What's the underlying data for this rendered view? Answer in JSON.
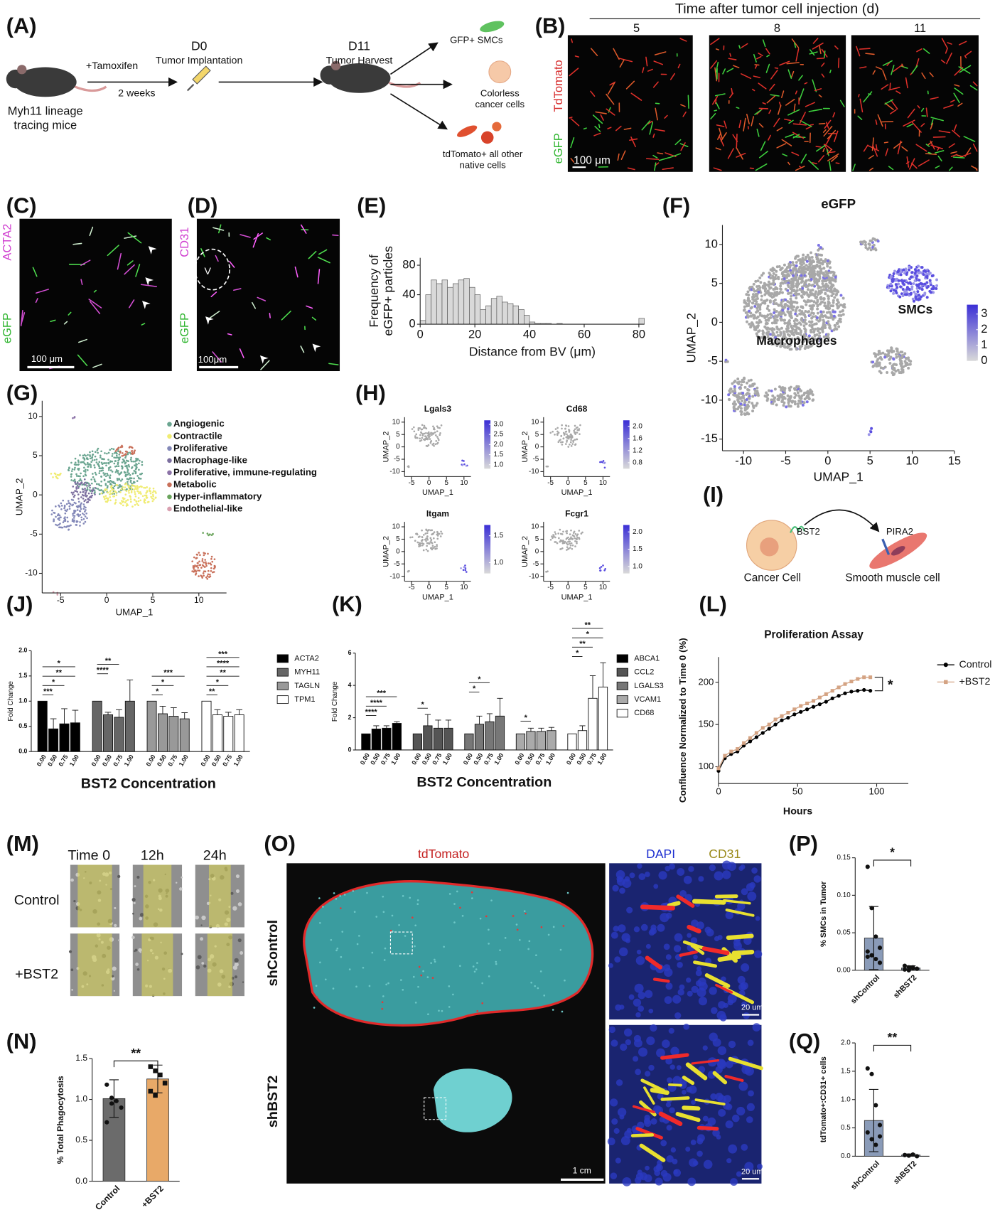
{
  "panel_labels": [
    "(A)",
    "(B)",
    "(C)",
    "(D)",
    "(E)",
    "(F)",
    "(G)",
    "(H)",
    "(I)",
    "(J)",
    "(K)",
    "(L)",
    "(M)",
    "(N)",
    "(O)",
    "(P)",
    "(Q)"
  ],
  "A": {
    "treatment": "+Tamoxifen",
    "interval": "2 weeks",
    "mouse": [
      "Myh11 lineage",
      "tracing mice"
    ],
    "d0": "D0",
    "d0_event": "Tumor Implantation",
    "d11": "D11",
    "d11_event": "Tumor Harvest",
    "outputs": [
      [
        "GFP+ SMCs"
      ],
      [
        "Colorless",
        "cancer cells"
      ],
      [
        "tdTomato+ all other",
        "native cells"
      ]
    ]
  },
  "B": {
    "title": "Time after tumor cell injection (d)",
    "days": [
      "5",
      "8",
      "11"
    ],
    "channels": [
      "TdTomato",
      "eGFP"
    ],
    "scale": "100 μm"
  },
  "C": {
    "channels": [
      "ACTA2",
      "eGFP"
    ],
    "scale": "100 μm"
  },
  "D": {
    "channels": [
      "CD31",
      "eGFP"
    ],
    "scale": "100μm",
    "vessel": "V"
  },
  "I": {
    "ligand": "BST2",
    "receptor": "PIRA2",
    "source": "Cancer Cell",
    "target": "Smooth muscle cell"
  },
  "M": {
    "times": [
      "Time 0",
      "12h",
      "24h"
    ],
    "conditions": [
      "Control",
      "+BST2"
    ]
  },
  "O": {
    "channel": "tdTomato",
    "inset_channels": [
      "DAPI",
      "CD31"
    ],
    "conditions": [
      "shControl",
      "shBST2"
    ],
    "scale": "1 cm",
    "inset_scales": [
      "20 um",
      "20 um"
    ]
  },
  "chart_data": [
    {
      "type": "histogram",
      "xlabel": "Distance from BV (μm)",
      "ylabel": [
        "Frequency of",
        "eGFP+ particles"
      ],
      "bins": [
        0,
        2,
        4,
        6,
        8,
        10,
        12,
        14,
        16,
        18,
        20,
        22,
        24,
        26,
        28,
        30,
        32,
        34,
        36,
        38,
        40,
        42,
        44,
        46,
        48,
        50,
        52,
        54,
        56,
        58,
        60,
        62,
        64,
        66,
        68,
        70,
        72,
        74,
        76,
        78,
        80,
        82
      ],
      "counts": [
        5,
        40,
        60,
        55,
        60,
        50,
        55,
        60,
        62,
        50,
        40,
        20,
        25,
        35,
        38,
        30,
        28,
        25,
        20,
        12,
        3,
        1,
        1,
        1,
        0,
        1,
        0,
        0,
        0,
        0,
        0,
        0,
        0,
        0,
        0,
        0,
        0,
        0,
        0,
        0,
        8
      ],
      "color": "#d9d9d9",
      "xlim": [
        0,
        82
      ],
      "ylim": [
        0,
        90
      ],
      "xticks": [
        0,
        20,
        40,
        60,
        80
      ],
      "yticks": [
        0,
        40,
        80
      ]
    },
    {
      "type": "umap",
      "title": "eGFP",
      "xlabel": "UMAP_1",
      "ylabel": "UMAP_2",
      "xlim": [
        -12.5,
        15
      ],
      "ylim": [
        -16.5,
        12.5
      ],
      "xticks": [
        -10,
        -5,
        0,
        5,
        10,
        15
      ],
      "yticks": [
        -15,
        -10,
        -5,
        0,
        5,
        10
      ],
      "colorbar": {
        "lim": [
          0,
          3.6
        ],
        "ticks": [
          0,
          1,
          2,
          3
        ],
        "colors": [
          "#d9d9d9",
          "#3b2fd6"
        ]
      },
      "annotations": [
        "SMCs",
        "Macrophages"
      ]
    },
    {
      "type": "umap",
      "xlabel": "UMAP_1",
      "ylabel": "UMAP_2",
      "xlim": [
        -7,
        13
      ],
      "ylim": [
        -12.5,
        12
      ],
      "xticks": [
        -5,
        0,
        5,
        10
      ],
      "yticks": [
        -10,
        -5,
        0,
        5,
        10
      ],
      "clusters": [
        {
          "name": "Angiogenic",
          "color": "#6aa590"
        },
        {
          "name": "Contractile",
          "color": "#f0ec72"
        },
        {
          "name": "Proliferative",
          "color": "#8388b8"
        },
        {
          "name": "Macrophage-like",
          "color": "#7c6f9f"
        },
        {
          "name": "Proliferative, immune-regulating",
          "color": "#8c73a8"
        },
        {
          "name": "Metabolic",
          "color": "#c9705a"
        },
        {
          "name": "Hyper-inflammatory",
          "color": "#6aa45c"
        },
        {
          "name": "Endothelial-like",
          "color": "#d9a0b0"
        }
      ]
    },
    {
      "type": "umap",
      "title": "Lgals3",
      "xlabel": "UMAP_1",
      "ylabel": "UMAP_2",
      "xlim": [
        -7,
        12
      ],
      "ylim": [
        -12,
        12
      ],
      "xticks": [
        -5,
        0,
        5,
        10
      ],
      "yticks": [
        -10,
        -5,
        0,
        5,
        10
      ],
      "colorbar": {
        "lim": [
          0.8,
          3.2
        ],
        "ticks": [
          {
            "value": 1,
            "label": "1.0"
          },
          1.5,
          {
            "value": 2,
            "label": "2.0"
          },
          2.5,
          {
            "value": 3,
            "label": "3.0"
          }
        ],
        "colors": [
          "#d9d9d9",
          "#3b2fd6"
        ]
      }
    },
    {
      "type": "umap",
      "title": "Cd68",
      "xlabel": "UMAP_1",
      "ylabel": "UMAP_2",
      "xlim": [
        -7,
        12
      ],
      "ylim": [
        -12,
        12
      ],
      "xticks": [
        -5,
        0,
        5,
        10
      ],
      "yticks": [
        -10,
        -5,
        0,
        5,
        10
      ],
      "colorbar": {
        "lim": [
          0.6,
          2.2
        ],
        "ticks": [
          0.8,
          1.2,
          1.6,
          {
            "value": 2,
            "label": "2.0"
          }
        ],
        "colors": [
          "#d9d9d9",
          "#3b2fd6"
        ]
      }
    },
    {
      "type": "umap",
      "title": "Itgam",
      "xlabel": "UMAP_1",
      "ylabel": "UMAP_2",
      "xlim": [
        -7,
        12
      ],
      "ylim": [
        -12,
        12
      ],
      "xticks": [
        -5,
        0,
        5,
        10
      ],
      "yticks": [
        -10,
        -5,
        0,
        5,
        10
      ],
      "colorbar": {
        "lim": [
          0.8,
          1.7
        ],
        "ticks": [
          {
            "value": 1,
            "label": "1.0"
          },
          1.5
        ],
        "colors": [
          "#d9d9d9",
          "#3b2fd6"
        ]
      }
    },
    {
      "type": "umap",
      "title": "Fcgr1",
      "xlabel": "UMAP_1",
      "ylabel": "UMAP_2",
      "xlim": [
        -7,
        12
      ],
      "ylim": [
        -12,
        12
      ],
      "xticks": [
        -5,
        0,
        5,
        10
      ],
      "yticks": [
        -10,
        -5,
        0,
        5,
        10
      ],
      "colorbar": {
        "lim": [
          0.8,
          2.2
        ],
        "ticks": [
          {
            "value": 1,
            "label": "1.0"
          },
          1.5,
          {
            "value": 2,
            "label": "2.0"
          }
        ],
        "colors": [
          "#d9d9d9",
          "#3b2fd6"
        ]
      }
    },
    {
      "type": "grouped-bar",
      "xlabel": "BST2 Concentration",
      "ylabel": "Fold Change",
      "categories": [
        "0.00",
        "0.50",
        "0.75",
        "1.00"
      ],
      "ylim": [
        0,
        2
      ],
      "yticks": [
        {
          "value": 0,
          "label": "0.0"
        },
        0.5,
        {
          "value": 1,
          "label": "1.0"
        },
        1.5,
        {
          "value": 2,
          "label": "2.0"
        }
      ],
      "series": [
        {
          "name": "ACTA2",
          "color": "#000000",
          "values": [
            1,
            0.45,
            0.55,
            0.57
          ],
          "errors": [
            0,
            0.2,
            0.3,
            0.25
          ],
          "significance": [
            "***",
            "*",
            "**",
            "*"
          ]
        },
        {
          "name": "MYH11",
          "color": "#666666",
          "values": [
            1,
            0.73,
            0.68,
            1.0
          ],
          "errors": [
            0,
            0.05,
            0.15,
            0.42
          ],
          "significance": [
            "****",
            "**"
          ]
        },
        {
          "name": "TAGLN",
          "color": "#999999",
          "values": [
            1,
            0.75,
            0.7,
            0.65
          ],
          "errors": [
            0,
            0.15,
            0.17,
            0.12
          ],
          "significance": [
            "*",
            "*",
            "***"
          ]
        },
        {
          "name": "TPM1",
          "color": "#ffffff",
          "values": [
            1,
            0.73,
            0.7,
            0.73
          ],
          "errors": [
            0,
            0.1,
            0.08,
            0.1
          ],
          "significance": [
            "**",
            "*",
            "**",
            "****",
            "***"
          ]
        }
      ]
    },
    {
      "type": "grouped-bar",
      "xlabel": "BST2 Concentration",
      "ylabel": "Fold Change",
      "categories": [
        "0.00",
        "0.50",
        "0.75",
        "1.00"
      ],
      "ylim": [
        0,
        6
      ],
      "yticks": [
        0,
        2,
        4,
        6
      ],
      "series": [
        {
          "name": "ABCA1",
          "color": "#000000",
          "values": [
            1,
            1.3,
            1.35,
            1.65
          ],
          "errors": [
            0,
            0.2,
            0.15,
            0.1
          ],
          "significance": [
            "****",
            "****",
            "***"
          ]
        },
        {
          "name": "CCL2",
          "color": "#555555",
          "values": [
            1,
            1.5,
            1.35,
            1.35
          ],
          "errors": [
            0,
            0.7,
            0.5,
            0.5
          ],
          "significance": [
            "*"
          ]
        },
        {
          "name": "LGALS3",
          "color": "#777777",
          "values": [
            1,
            1.6,
            1.75,
            2.1
          ],
          "errors": [
            0,
            0.5,
            0.5,
            1.1
          ],
          "significance": [
            "*",
            "*"
          ]
        },
        {
          "name": "VCAM1",
          "color": "#aaaaaa",
          "values": [
            1,
            1.15,
            1.15,
            1.2
          ],
          "errors": [
            0,
            0.2,
            0.2,
            0.2
          ],
          "significance": [
            "*"
          ]
        },
        {
          "name": "CD68",
          "color": "#ffffff",
          "values": [
            1,
            1.2,
            3.2,
            3.9
          ],
          "errors": [
            0,
            0.3,
            1.4,
            1.5
          ],
          "significance": [
            "*",
            "**",
            "*",
            "**"
          ]
        }
      ]
    },
    {
      "type": "line",
      "title": "Proliferation Assay",
      "xlabel": "Hours",
      "ylabel": "Confluence Normalized to Time 0 (%)",
      "xlim": [
        0,
        120
      ],
      "ylim": [
        80,
        230
      ],
      "xticks": [
        0,
        50,
        100
      ],
      "yticks": [
        100,
        150,
        200
      ],
      "annotation": "*",
      "x": [
        0,
        4,
        8,
        12,
        16,
        20,
        24,
        28,
        32,
        36,
        40,
        44,
        48,
        52,
        56,
        60,
        64,
        68,
        72,
        76,
        80,
        84,
        88,
        92,
        96
      ],
      "series": [
        {
          "name": "Control",
          "color": "#000000",
          "values": [
            95,
            110,
            115,
            118,
            125,
            130,
            135,
            140,
            145,
            150,
            155,
            158,
            162,
            165,
            168,
            171,
            174,
            177,
            181,
            184,
            187,
            189,
            190,
            191,
            190
          ]
        },
        {
          "name": "+BST2",
          "color": "#d4a383",
          "values": [
            98,
            113,
            118,
            121,
            128,
            134,
            140,
            146,
            150,
            156,
            160,
            164,
            168,
            172,
            175,
            178,
            182,
            186,
            190,
            194,
            198,
            201,
            204,
            206,
            206
          ]
        }
      ]
    },
    {
      "type": "bar-dots",
      "ylabel": "% Total Phagocytosis",
      "categories": [
        "Control",
        "+BST2"
      ],
      "values": [
        1.01,
        1.25
      ],
      "errors": [
        0.23,
        0.17
      ],
      "colors": [
        "#6b6b6b",
        "#e8a968"
      ],
      "points": [
        [
          1.18,
          1.02,
          0.98,
          0.9,
          0.72,
          0.95
        ],
        [
          1.4,
          1.35,
          1.3,
          1.2,
          1.1,
          1.05
        ]
      ],
      "ylim": [
        0,
        1.5
      ],
      "yticks": [
        {
          "value": 0,
          "label": "0.0"
        },
        0.5,
        {
          "value": 1,
          "label": "1.0"
        },
        1.5
      ],
      "significance": "**"
    },
    {
      "type": "bar-dots",
      "ylabel": "% SMCs in Tumor",
      "categories": [
        "shControl",
        "shBST2"
      ],
      "values": [
        0.043,
        0.003
      ],
      "errors": [
        0.042,
        0.003
      ],
      "colors": [
        "#8a9bb8",
        "#8a9bb8"
      ],
      "points": [
        [
          0.138,
          0.083,
          0.045,
          0.03,
          0.025,
          0.02,
          0.015,
          0.01,
          0.018
        ],
        [
          0.006,
          0.004,
          0.003,
          0.002,
          0.001,
          0,
          0.004,
          0.002
        ]
      ],
      "ylim": [
        0,
        0.15
      ],
      "yticks": [
        {
          "value": 0,
          "label": "0.00"
        },
        {
          "value": 0.05,
          "label": "0.05"
        },
        {
          "value": 0.1,
          "label": "0.10"
        },
        {
          "value": 0.15,
          "label": "0.15"
        }
      ],
      "significance": "*"
    },
    {
      "type": "bar-dots",
      "ylabel": "tdTomato+:CD31+ cells",
      "categories": [
        "shControl",
        "shBST2"
      ],
      "values": [
        0.63,
        0.02
      ],
      "errors": [
        0.55,
        0.02
      ],
      "colors": [
        "#8a9bb8",
        "#8a9bb8"
      ],
      "points": [
        [
          1.55,
          1.45,
          0.9,
          0.55,
          0.42,
          0.3,
          0.2,
          0.35
        ],
        [
          0.02,
          0.01,
          0.03,
          0,
          0.02,
          0.01
        ]
      ],
      "ylim": [
        0,
        2
      ],
      "yticks": [
        {
          "value": 0,
          "label": "0.0"
        },
        0.5,
        {
          "value": 1,
          "label": "1.0"
        },
        1.5,
        {
          "value": 2,
          "label": "2.0"
        }
      ],
      "significance": "**"
    }
  ]
}
